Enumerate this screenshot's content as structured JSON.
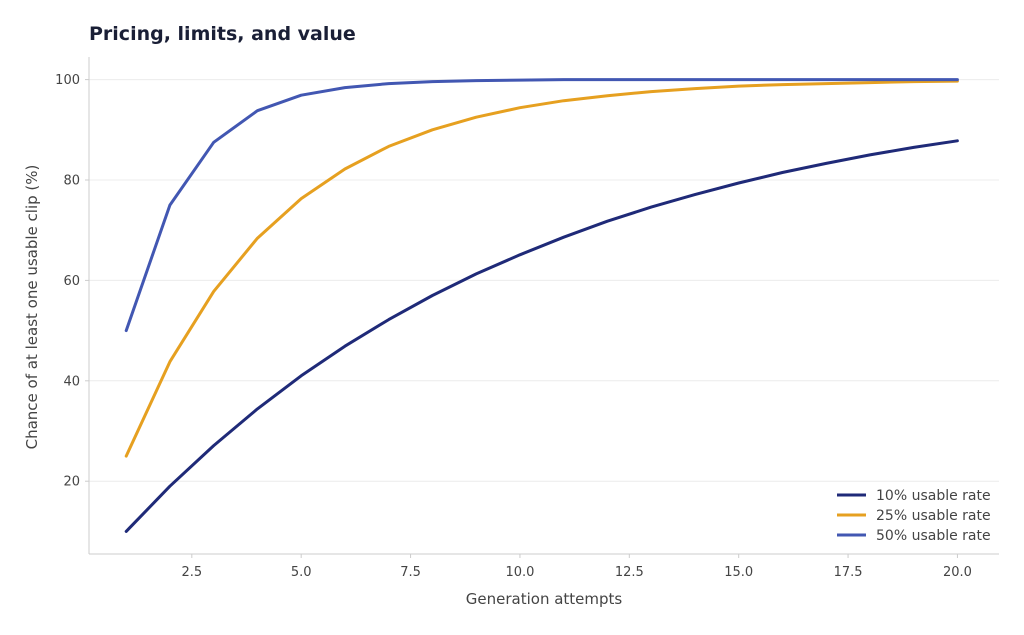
{
  "chart_data": {
    "type": "line",
    "title": "Pricing, limits, and value",
    "xlabel": "Generation attempts",
    "ylabel": "Chance of at least one usable clip (%)",
    "xlim": [
      0.15,
      20.95
    ],
    "ylim": [
      5.5,
      104.5
    ],
    "xticks": [
      2.5,
      5.0,
      7.5,
      10.0,
      12.5,
      15.0,
      17.5,
      20.0
    ],
    "xtick_labels": [
      "2.5",
      "5.0",
      "7.5",
      "10.0",
      "12.5",
      "15.0",
      "17.5",
      "20.0"
    ],
    "yticks": [
      20,
      40,
      60,
      80,
      100
    ],
    "ytick_labels": [
      "20",
      "40",
      "60",
      "80",
      "100"
    ],
    "grid": "horizontal",
    "legend_position": "bottom-right",
    "x": [
      1,
      2,
      3,
      4,
      5,
      6,
      7,
      8,
      9,
      10,
      11,
      12,
      13,
      14,
      15,
      16,
      17,
      18,
      19,
      20
    ],
    "series": [
      {
        "name": "10% usable rate",
        "color": "#1f2a78",
        "values": [
          10.0,
          19.0,
          27.1,
          34.4,
          41.0,
          46.9,
          52.2,
          57.0,
          61.3,
          65.1,
          68.6,
          71.8,
          74.6,
          77.1,
          79.4,
          81.5,
          83.3,
          85.0,
          86.5,
          87.8
        ]
      },
      {
        "name": "25% usable rate",
        "color": "#e6a020",
        "values": [
          25.0,
          43.8,
          57.8,
          68.4,
          76.3,
          82.2,
          86.7,
          90.0,
          92.5,
          94.4,
          95.8,
          96.8,
          97.6,
          98.2,
          98.7,
          99.0,
          99.2,
          99.4,
          99.6,
          99.7
        ]
      },
      {
        "name": "50% usable rate",
        "color": "#4257b2",
        "values": [
          50.0,
          75.0,
          87.5,
          93.8,
          96.9,
          98.4,
          99.2,
          99.6,
          99.8,
          99.9,
          100.0,
          100.0,
          100.0,
          100.0,
          100.0,
          100.0,
          100.0,
          100.0,
          100.0,
          100.0
        ]
      }
    ]
  }
}
